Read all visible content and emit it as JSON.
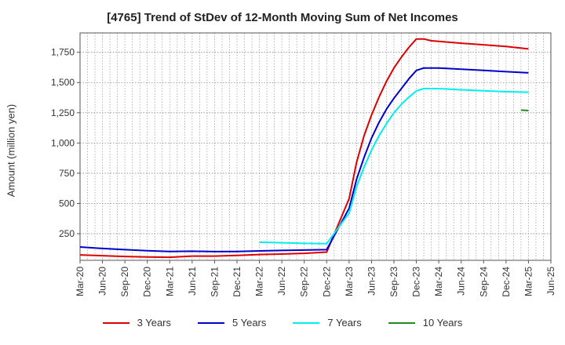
{
  "chart_data": {
    "type": "line",
    "title": "[4765]  Trend of StDev of 12-Month Moving Sum of Net Incomes",
    "xlabel": "",
    "ylabel": "Amount (million yen)",
    "x_ticks": [
      "Mar-20",
      "Jun-20",
      "Sep-20",
      "Dec-20",
      "Mar-21",
      "Jun-21",
      "Sep-21",
      "Dec-21",
      "Mar-22",
      "Jun-22",
      "Sep-22",
      "Dec-22",
      "Mar-23",
      "Jun-23",
      "Sep-23",
      "Dec-23",
      "Mar-24",
      "Jun-24",
      "Sep-24",
      "Dec-24",
      "Mar-25",
      "Jun-25"
    ],
    "y_ticks": [
      250,
      500,
      750,
      1000,
      1250,
      1500,
      1750
    ],
    "y_tick_labels": [
      "250",
      "500",
      "750",
      "1,000",
      "1,250",
      "1,500",
      "1,750"
    ],
    "ylim": [
      30,
      1910
    ],
    "grid": true,
    "legend_position": "bottom",
    "series": [
      {
        "name": "3 Years",
        "color": "#dd0000",
        "points": [
          [
            "Mar-20",
            75
          ],
          [
            "Jun-20",
            68
          ],
          [
            "Sep-20",
            62
          ],
          [
            "Dec-20",
            58
          ],
          [
            "Mar-21",
            55
          ],
          [
            "Jun-21",
            65
          ],
          [
            "Sep-21",
            65
          ],
          [
            "Dec-21",
            70
          ],
          [
            "Mar-22",
            78
          ],
          [
            "Jun-22",
            82
          ],
          [
            "Sep-22",
            88
          ],
          [
            "Dec-22",
            98
          ],
          [
            "Mar-23",
            540
          ],
          [
            "Apr-23",
            840
          ],
          [
            "May-23",
            1060
          ],
          [
            "Jun-23",
            1230
          ],
          [
            "Jul-23",
            1380
          ],
          [
            "Aug-23",
            1510
          ],
          [
            "Sep-23",
            1620
          ],
          [
            "Oct-23",
            1710
          ],
          [
            "Nov-23",
            1790
          ],
          [
            "Dec-23",
            1860
          ],
          [
            "Jan-24",
            1860
          ],
          [
            "Feb-24",
            1845
          ],
          [
            "Mar-24",
            1840
          ],
          [
            "Jun-24",
            1825
          ],
          [
            "Sep-24",
            1812
          ],
          [
            "Dec-24",
            1798
          ],
          [
            "Mar-25",
            1778
          ]
        ]
      },
      {
        "name": "5 Years",
        "color": "#0000cc",
        "points": [
          [
            "Mar-20",
            140
          ],
          [
            "Jun-20",
            128
          ],
          [
            "Sep-20",
            118
          ],
          [
            "Dec-20",
            110
          ],
          [
            "Mar-21",
            103
          ],
          [
            "Jun-21",
            105
          ],
          [
            "Sep-21",
            102
          ],
          [
            "Dec-21",
            103
          ],
          [
            "Mar-22",
            108
          ],
          [
            "Jun-22",
            112
          ],
          [
            "Sep-22",
            115
          ],
          [
            "Dec-22",
            118
          ],
          [
            "Mar-23",
            460
          ],
          [
            "Apr-23",
            700
          ],
          [
            "May-23",
            880
          ],
          [
            "Jun-23",
            1040
          ],
          [
            "Jul-23",
            1170
          ],
          [
            "Aug-23",
            1280
          ],
          [
            "Sep-23",
            1370
          ],
          [
            "Oct-23",
            1450
          ],
          [
            "Nov-23",
            1530
          ],
          [
            "Dec-23",
            1600
          ],
          [
            "Jan-24",
            1620
          ],
          [
            "Mar-24",
            1620
          ],
          [
            "Jun-24",
            1610
          ],
          [
            "Sep-24",
            1600
          ],
          [
            "Dec-24",
            1590
          ],
          [
            "Mar-25",
            1580
          ]
        ]
      },
      {
        "name": "7 Years",
        "color": "#00eeee",
        "points": [
          [
            "Mar-22",
            180
          ],
          [
            "Jun-22",
            175
          ],
          [
            "Sep-22",
            170
          ],
          [
            "Dec-22",
            168
          ],
          [
            "Mar-23",
            420
          ],
          [
            "Apr-23",
            640
          ],
          [
            "May-23",
            800
          ],
          [
            "Jun-23",
            940
          ],
          [
            "Jul-23",
            1060
          ],
          [
            "Aug-23",
            1160
          ],
          [
            "Sep-23",
            1250
          ],
          [
            "Oct-23",
            1320
          ],
          [
            "Nov-23",
            1380
          ],
          [
            "Dec-23",
            1430
          ],
          [
            "Jan-24",
            1450
          ],
          [
            "Mar-24",
            1450
          ],
          [
            "Jun-24",
            1440
          ],
          [
            "Sep-24",
            1432
          ],
          [
            "Dec-24",
            1424
          ],
          [
            "Mar-25",
            1420
          ]
        ]
      },
      {
        "name": "10 Years",
        "color": "#228b22",
        "points": [
          [
            "Feb-25",
            1272
          ],
          [
            "Mar-25",
            1268
          ]
        ]
      }
    ]
  }
}
